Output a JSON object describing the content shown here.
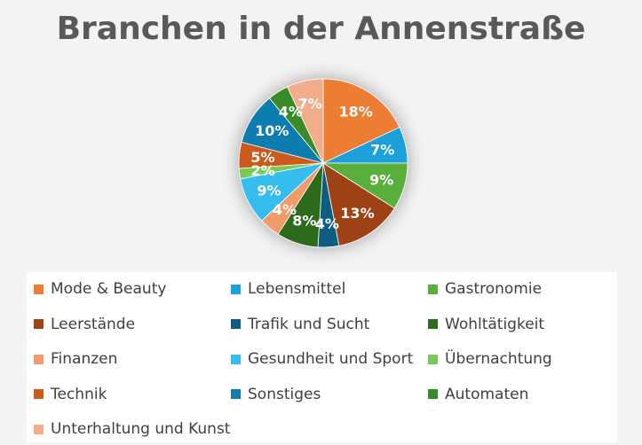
{
  "chart_data": {
    "type": "pie",
    "title": "Branchen in der Annenstraße",
    "legend_position": "bottom",
    "slices": [
      {
        "label": "Mode & Beauty",
        "value": 18,
        "display": "18%",
        "color": "#ED7D31"
      },
      {
        "label": "Lebensmittel",
        "value": 7,
        "display": "7%",
        "color": "#1EA0DA"
      },
      {
        "label": "Gastronomie",
        "value": 9,
        "display": "9%",
        "color": "#5AAE3A"
      },
      {
        "label": "Leerstände",
        "value": 13,
        "display": "13%",
        "color": "#9E4314"
      },
      {
        "label": "Trafik und Sucht",
        "value": 4,
        "display": "4%",
        "color": "#0E5C82"
      },
      {
        "label": "Wohltätigkeit",
        "value": 8,
        "display": "8%",
        "color": "#2F6B1F"
      },
      {
        "label": "Finanzen",
        "value": 4,
        "display": "4%",
        "color": "#F19A6A"
      },
      {
        "label": "Gesundheit und Sport",
        "value": 9,
        "display": "9%",
        "color": "#35BDF0"
      },
      {
        "label": "Übernachtung",
        "value": 2,
        "display": "2%",
        "color": "#77CA59"
      },
      {
        "label": "Technik",
        "value": 5,
        "display": "5%",
        "color": "#CC5A1E"
      },
      {
        "label": "Sonstiges",
        "value": 10,
        "display": "10%",
        "color": "#117CAE"
      },
      {
        "label": "Automaten",
        "value": 4,
        "display": "4%",
        "color": "#3B8A2A"
      },
      {
        "label": "Unterhaltung und Kunst",
        "value": 7,
        "display": "7%",
        "color": "#F3AD8A"
      }
    ]
  }
}
